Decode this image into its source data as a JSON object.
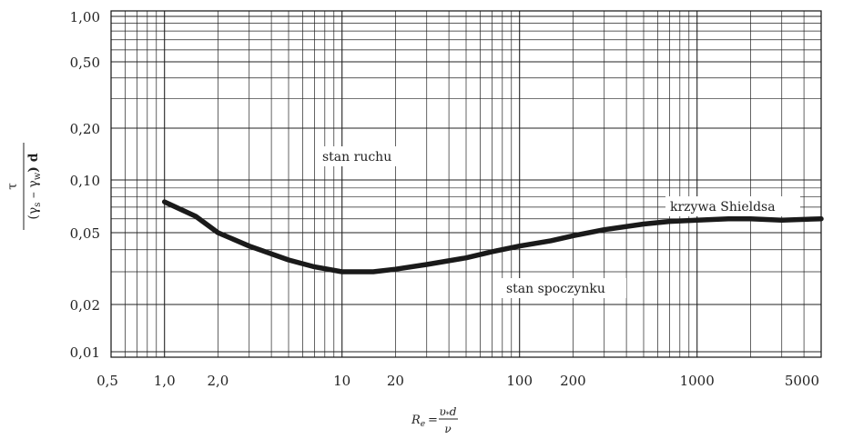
{
  "chart_data": {
    "type": "line",
    "title": "",
    "xscale": "log",
    "yscale": "nonlinear",
    "xlim": [
      0.5,
      5000
    ],
    "ylim": [
      0.01,
      1.0
    ],
    "grid": true,
    "ylabel": {
      "numerator": "τ",
      "denominator_prefix": "(γ",
      "denominator_sub_s": "s",
      "denominator_minus": "–",
      "denominator_gamma_w": "γ",
      "denominator_sub_w": "w",
      "denominator_suffix": ") d"
    },
    "xlabel": {
      "lhs": "R",
      "lhs_sub": "e",
      "equals": "=",
      "numerator": "υ",
      "numerator_sub": "*",
      "numerator_tail": "d",
      "denominator": "ν"
    },
    "x_tick_labels": [
      "0,5",
      "1,0",
      "2,0",
      "10",
      "20",
      "100",
      "200",
      "1000",
      "5000"
    ],
    "x_tick_values": [
      0.5,
      1,
      2,
      10,
      20,
      100,
      200,
      1000,
      5000
    ],
    "y_tick_labels": [
      "1,00",
      "0,50",
      "0,20",
      "0,10",
      "0,05",
      "0,02",
      "0,01"
    ],
    "y_tick_values": [
      1.0,
      0.5,
      0.2,
      0.1,
      0.05,
      0.02,
      0.01
    ],
    "annotations": {
      "upper_region": "stan ruchu",
      "lower_region": "stan spoczynku",
      "curve_label": "krzywa Shieldsa"
    },
    "series": [
      {
        "name": "krzywa Shieldsa",
        "x": [
          1.0,
          1.5,
          2.0,
          3.0,
          5.0,
          7.0,
          10,
          15,
          20,
          30,
          50,
          70,
          100,
          150,
          200,
          300,
          500,
          700,
          1000,
          1500,
          2000,
          3000,
          5000
        ],
        "y": [
          0.075,
          0.062,
          0.05,
          0.042,
          0.035,
          0.032,
          0.03,
          0.03,
          0.031,
          0.033,
          0.036,
          0.039,
          0.042,
          0.045,
          0.048,
          0.052,
          0.056,
          0.058,
          0.059,
          0.06,
          0.06,
          0.059,
          0.06
        ]
      }
    ]
  }
}
